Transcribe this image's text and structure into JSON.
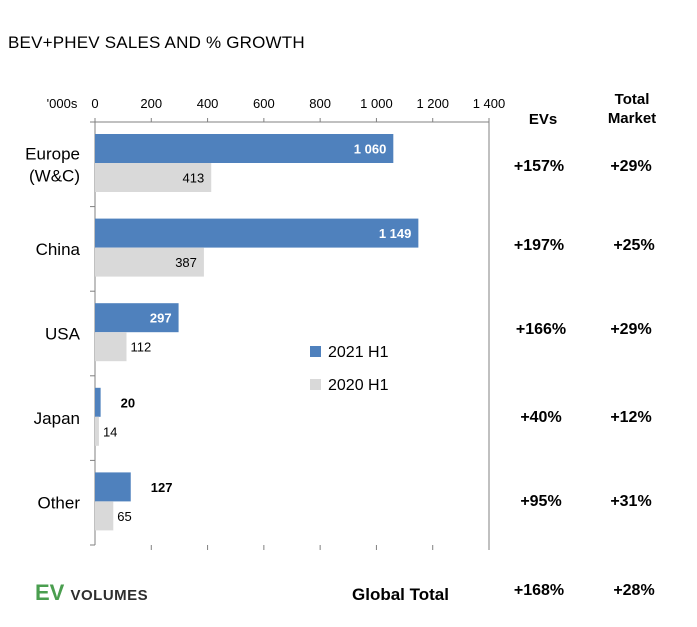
{
  "title": "BEV+PHEV SALES AND % GROWTH",
  "axis_unit_label": "'000s",
  "legend": {
    "series1": "2021 H1",
    "series2": "2020 H1"
  },
  "columns": {
    "evs": "EVs",
    "total_market_line1": "Total",
    "total_market_line2": "Market"
  },
  "rows": [
    {
      "ev_growth": "+157%",
      "market_growth": "+29%"
    },
    {
      "ev_growth": "+197%",
      "market_growth": "+25%"
    },
    {
      "ev_growth": "+166%",
      "market_growth": "+29%"
    },
    {
      "ev_growth": "+40%",
      "market_growth": "+12%"
    },
    {
      "ev_growth": "+95%",
      "market_growth": "+31%"
    }
  ],
  "global": {
    "label": "Global Total",
    "ev_growth": "+168%",
    "market_growth": "+28%"
  },
  "logo": {
    "ev": "EV",
    "volumes": "VOLUMES"
  },
  "colors": {
    "series1": "#4f81bd",
    "series2": "#d9d9d9",
    "logo_green": "#4a9e4f"
  },
  "chart_data": {
    "type": "bar",
    "orientation": "horizontal",
    "title": "BEV+PHEV SALES AND % GROWTH",
    "xlabel": "'000s",
    "ylabel": "",
    "xlim": [
      0,
      1400
    ],
    "xticks": [
      0,
      200,
      400,
      600,
      800,
      1000,
      1200,
      1400
    ],
    "xtick_labels": [
      "0",
      "200",
      "400",
      "600",
      "800",
      "1 000",
      "1 200",
      "1 400"
    ],
    "categories": [
      "Europe (W&C)",
      "China",
      "USA",
      "Japan",
      "Other"
    ],
    "category_lines": [
      [
        "Europe",
        "(W&C)"
      ],
      [
        "China"
      ],
      [
        "USA"
      ],
      [
        "Japan"
      ],
      [
        "Other"
      ]
    ],
    "series": [
      {
        "name": "2021 H1",
        "values": [
          1060,
          1149,
          297,
          20,
          127
        ],
        "labels": [
          "1 060",
          "1 149",
          "297",
          "20",
          "127"
        ]
      },
      {
        "name": "2020 H1",
        "values": [
          413,
          387,
          112,
          14,
          65
        ],
        "labels": [
          "413",
          "387",
          "112",
          "14",
          "65"
        ]
      }
    ],
    "legend_position": "center"
  }
}
